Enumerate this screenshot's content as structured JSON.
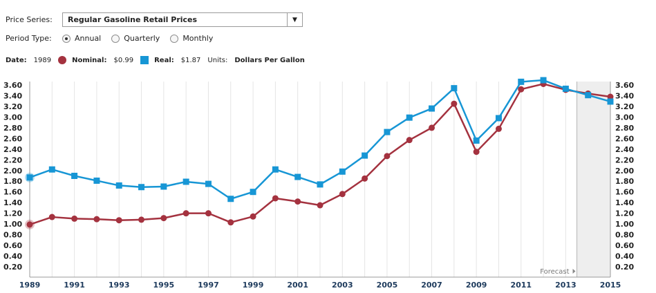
{
  "controls": {
    "price_series_label": "Price Series:",
    "price_series_value": "Regular Gasoline Retail Prices",
    "period_type_label": "Period Type:",
    "period_options": [
      {
        "label": "Annual",
        "selected": true
      },
      {
        "label": "Quarterly",
        "selected": false
      },
      {
        "label": "Monthly",
        "selected": false
      }
    ]
  },
  "info": {
    "date_label": "Date:",
    "date_value": "1989",
    "nominal_label": "Nominal:",
    "nominal_value": "$0.99",
    "real_label": "Real:",
    "real_value": "$1.87",
    "units_label": "Units:",
    "units_value": "Dollars Per Gallon"
  },
  "colors": {
    "nominal": "#a4323f",
    "real": "#1796d5"
  },
  "chart_data": {
    "type": "line",
    "x": [
      1989,
      1990,
      1991,
      1992,
      1993,
      1994,
      1995,
      1996,
      1997,
      1998,
      1999,
      2000,
      2001,
      2002,
      2003,
      2004,
      2005,
      2006,
      2007,
      2008,
      2009,
      2010,
      2011,
      2012,
      2013,
      2014,
      2015
    ],
    "series": [
      {
        "name": "Nominal",
        "values": [
          0.99,
          1.13,
          1.1,
          1.09,
          1.07,
          1.08,
          1.11,
          1.2,
          1.2,
          1.03,
          1.14,
          1.48,
          1.42,
          1.35,
          1.56,
          1.85,
          2.27,
          2.57,
          2.8,
          3.25,
          2.35,
          2.78,
          3.52,
          3.62,
          3.51,
          3.44,
          3.38
        ]
      },
      {
        "name": "Real",
        "values": [
          1.87,
          2.02,
          1.9,
          1.81,
          1.72,
          1.69,
          1.7,
          1.79,
          1.75,
          1.47,
          1.6,
          2.02,
          1.88,
          1.74,
          1.98,
          2.28,
          2.72,
          2.99,
          3.16,
          3.54,
          2.56,
          2.98,
          3.66,
          3.69,
          3.53,
          3.41,
          3.29
        ]
      }
    ],
    "x_ticks": [
      "1989",
      "1991",
      "1993",
      "1995",
      "1997",
      "1999",
      "2001",
      "2003",
      "2005",
      "2007",
      "2009",
      "2011",
      "2013",
      "2015"
    ],
    "y_ticks": [
      "0.20",
      "0.40",
      "0.60",
      "0.80",
      "1.00",
      "1.20",
      "1.40",
      "1.60",
      "1.80",
      "2.00",
      "2.20",
      "2.40",
      "2.60",
      "2.80",
      "3.00",
      "3.20",
      "3.40",
      "3.60"
    ],
    "ylim": [
      0,
      3.8
    ],
    "xlim": [
      1989,
      2015
    ],
    "forecast_label": "Forecast",
    "forecast_start": 2013.5,
    "grid": "vertical"
  }
}
